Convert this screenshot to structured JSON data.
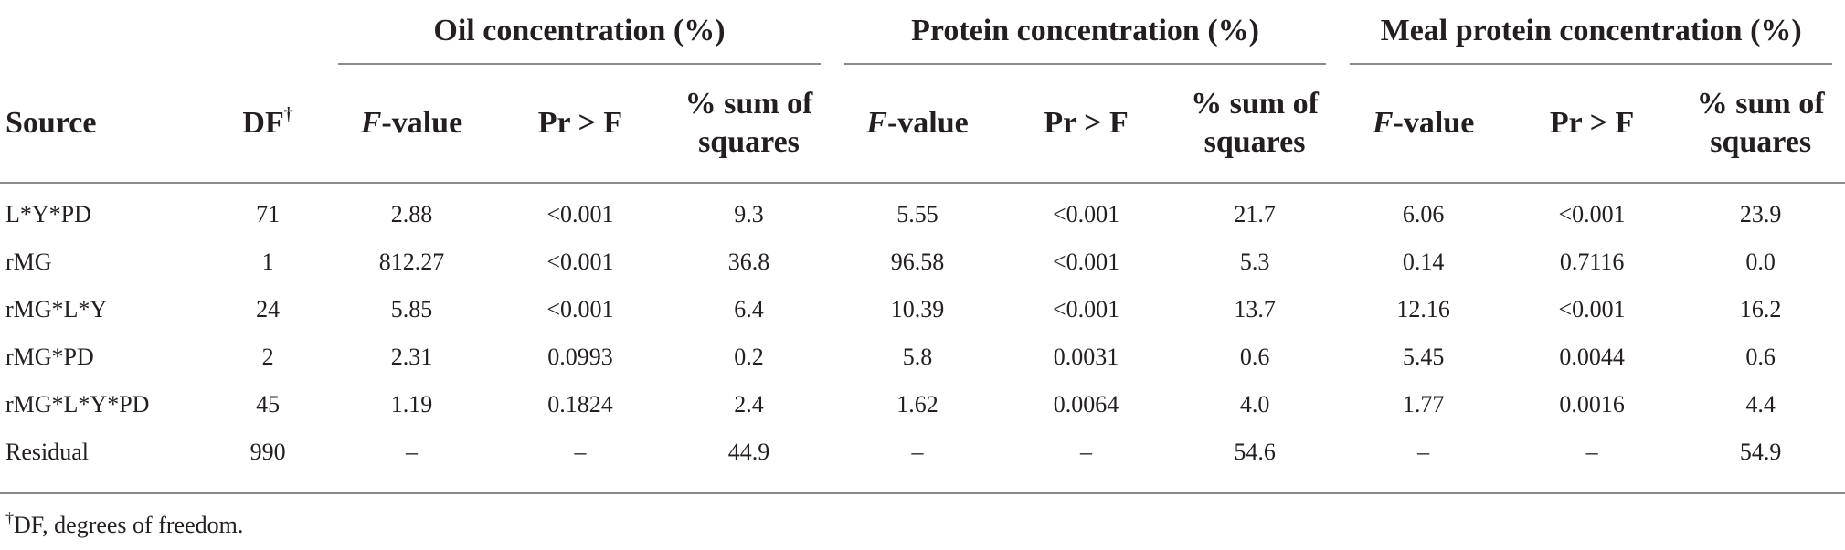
{
  "table": {
    "groups": [
      "Oil concentration (%)",
      "Protein concentration (%)",
      "Meal protein concentration (%)"
    ],
    "headers": {
      "source": "Source",
      "df": "DF",
      "df_mark": "†",
      "fvalue_italic": "F",
      "fvalue_rest": "-value",
      "pr": "Pr > F",
      "sumsq_line1": "% sum of",
      "sumsq_line2": "squares"
    },
    "rows": [
      {
        "source": "L*Y*PD",
        "df": "71",
        "oil": [
          "2.88",
          "<0.001",
          "9.3"
        ],
        "protein": [
          "5.55",
          "<0.001",
          "21.7"
        ],
        "meal": [
          "6.06",
          "<0.001",
          "23.9"
        ]
      },
      {
        "source": "rMG",
        "df": "1",
        "oil": [
          "812.27",
          "<0.001",
          "36.8"
        ],
        "protein": [
          "96.58",
          "<0.001",
          "5.3"
        ],
        "meal": [
          "0.14",
          "0.7116",
          "0.0"
        ]
      },
      {
        "source": "rMG*L*Y",
        "df": "24",
        "oil": [
          "5.85",
          "<0.001",
          "6.4"
        ],
        "protein": [
          "10.39",
          "<0.001",
          "13.7"
        ],
        "meal": [
          "12.16",
          "<0.001",
          "16.2"
        ]
      },
      {
        "source": "rMG*PD",
        "df": "2",
        "oil": [
          "2.31",
          "0.0993",
          "0.2"
        ],
        "protein": [
          "5.8",
          "0.0031",
          "0.6"
        ],
        "meal": [
          "5.45",
          "0.0044",
          "0.6"
        ]
      },
      {
        "source": "rMG*L*Y*PD",
        "df": "45",
        "oil": [
          "1.19",
          "0.1824",
          "2.4"
        ],
        "protein": [
          "1.62",
          "0.0064",
          "4.0"
        ],
        "meal": [
          "1.77",
          "0.0016",
          "4.4"
        ]
      },
      {
        "source": "Residual",
        "df": "990",
        "oil": [
          "–",
          "–",
          "44.9"
        ],
        "protein": [
          "–",
          "–",
          "54.6"
        ],
        "meal": [
          "–",
          "–",
          "54.9"
        ]
      }
    ]
  },
  "footnote": {
    "mark": "†",
    "text": "DF, degrees of freedom."
  }
}
